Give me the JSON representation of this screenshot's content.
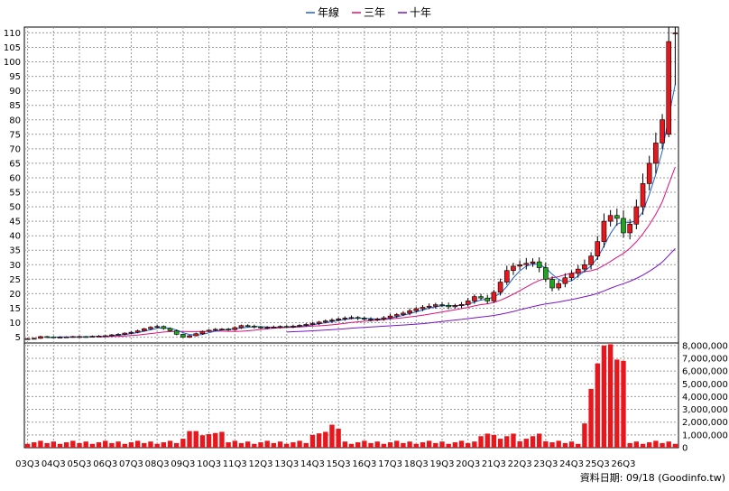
{
  "chart_data": {
    "type": "candlestick",
    "legend": {
      "placement": "top-center",
      "items": [
        {
          "name": "年線",
          "color": "#1f5fd6"
        },
        {
          "name": "三年",
          "color": "#e0107a"
        },
        {
          "name": "十年",
          "color": "#7a14c8"
        }
      ]
    },
    "x_tick_labels": [
      "03Q3",
      "04Q3",
      "05Q3",
      "06Q3",
      "07Q3",
      "08Q3",
      "09Q3",
      "10Q3",
      "11Q3",
      "12Q3",
      "13Q3",
      "14Q3",
      "15Q3",
      "16Q3",
      "17Q3",
      "18Q3",
      "19Q3",
      "20Q3",
      "21Q3",
      "22Q3",
      "23Q3",
      "24Q3",
      "25Q3",
      "26Q3"
    ],
    "price_axis": {
      "ylim": [
        3,
        112
      ],
      "ticks": [
        5,
        10,
        15,
        20,
        25,
        30,
        35,
        40,
        45,
        50,
        55,
        60,
        65,
        70,
        75,
        80,
        85,
        90,
        95,
        100,
        105,
        110
      ]
    },
    "volume_axis": {
      "ylim": [
        0,
        8200000
      ],
      "ticks": [
        "0",
        "1,000,000",
        "2,000,000",
        "3,000,000",
        "4,000,000",
        "5,000,000",
        "6,000,000",
        "7,000,000",
        "8,000,000"
      ]
    },
    "grid": true,
    "candles": [],
    "volume": [],
    "ma_year": [],
    "ma_3y": [],
    "ma_10y": [],
    "footer_note": "資料日期: 09/18  (Goodinfo.tw)",
    "colors": {
      "up": "#e8161d",
      "down": "#1fa51f",
      "volume": "#e8161d",
      "grid": "#9a9a9a"
    }
  }
}
